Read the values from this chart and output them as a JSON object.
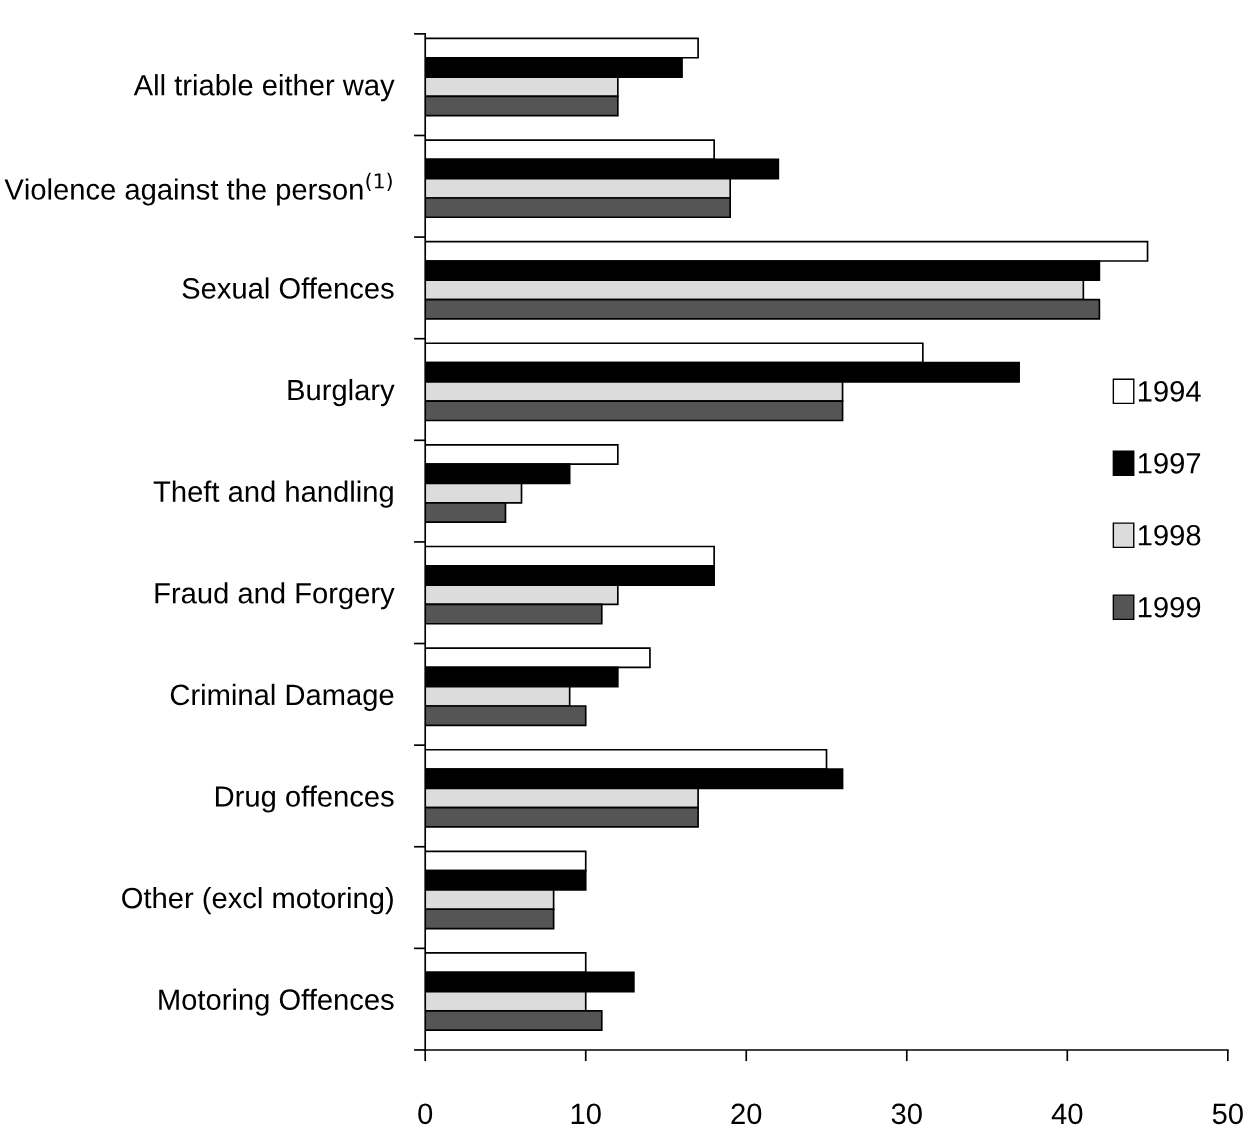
{
  "chart_data": {
    "type": "bar",
    "orientation": "horizontal",
    "categories": [
      "All triable either way",
      "Violence against the person$^{(1)}$",
      "Sexual Offences",
      "Burglary",
      "Theft and handling",
      "Fraud and Forgery",
      "Criminal Damage",
      "Drug offences",
      "Other (excl motoring)",
      "Motoring Offences"
    ],
    "series": [
      {
        "name": "1994",
        "color": "#ffffff",
        "values": [
          17,
          18,
          45,
          31,
          12,
          18,
          14,
          25,
          10,
          10
        ]
      },
      {
        "name": "1997",
        "color": "#000000",
        "values": [
          16,
          22,
          42,
          37,
          9,
          18,
          12,
          26,
          10,
          13
        ]
      },
      {
        "name": "1998",
        "color": "#dcdcdc",
        "values": [
          12,
          19,
          41,
          26,
          6,
          12,
          9,
          17,
          8,
          10
        ]
      },
      {
        "name": "1999",
        "color": "#555555",
        "values": [
          12,
          19,
          42,
          26,
          5,
          11,
          10,
          17,
          8,
          11
        ]
      }
    ],
    "xlim": [
      0,
      50
    ],
    "xticks": [
      0,
      10,
      20,
      30,
      40,
      50
    ],
    "grid": false,
    "legend": "right"
  }
}
